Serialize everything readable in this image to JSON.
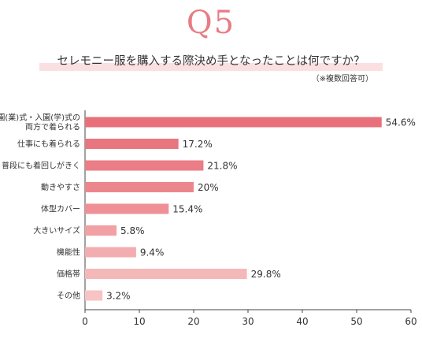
{
  "header": {
    "question_number": "Q5",
    "question": "セレモニー服を購入する際決め手となったことは何ですか？",
    "note": "（※複数回答可）"
  },
  "chart_data": {
    "type": "bar",
    "orientation": "horizontal",
    "categories": [
      [
        "卒園(業)式・入園(学)式の",
        "両方で着られる"
      ],
      [
        "仕事にも着られる"
      ],
      [
        "普段にも着回しがきく"
      ],
      [
        "動きやすさ"
      ],
      [
        "体型カバー"
      ],
      [
        "大きいサイズ"
      ],
      [
        "機能性"
      ],
      [
        "価格帯"
      ],
      [
        "その他"
      ]
    ],
    "values": [
      54.6,
      17.2,
      21.8,
      20,
      15.4,
      5.8,
      9.4,
      29.8,
      3.2
    ],
    "value_labels": [
      "54.6%",
      "17.2%",
      "21.8%",
      "20%",
      "15.4%",
      "5.8%",
      "9.4%",
      "29.8%",
      "3.2%"
    ],
    "bar_colors": [
      "#e8707a",
      "#e8767f",
      "#ea7d85",
      "#ec868d",
      "#ee9096",
      "#f1a0a4",
      "#f3acaf",
      "#f5b8b9",
      "#f7c3c3"
    ],
    "xlim": [
      0,
      60
    ],
    "xticks": [
      0,
      10,
      20,
      30,
      40,
      50,
      60
    ],
    "grid": false,
    "xlabel": "",
    "ylabel": ""
  }
}
